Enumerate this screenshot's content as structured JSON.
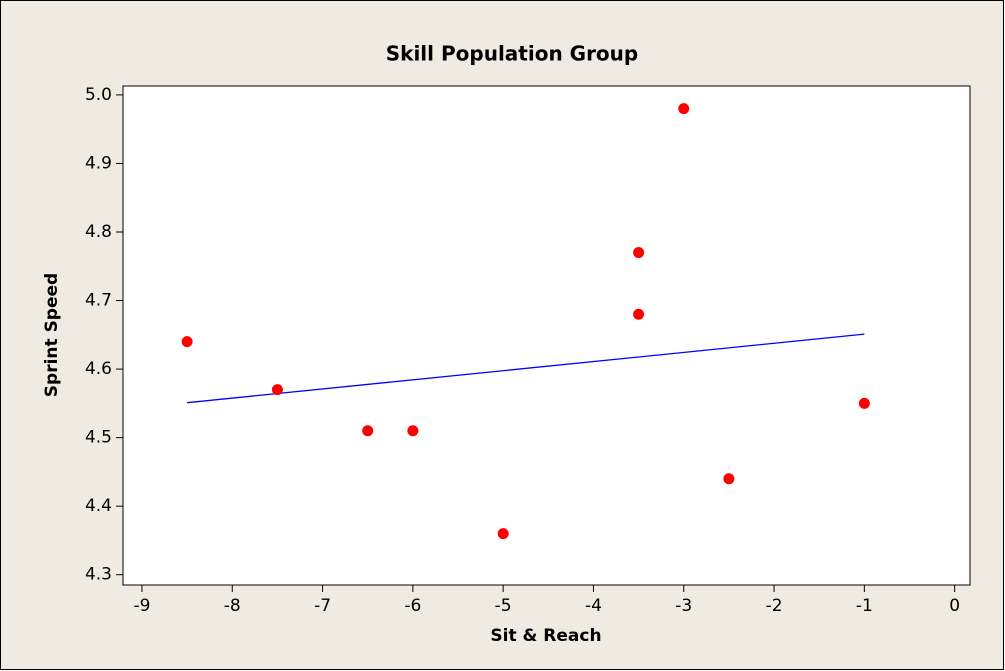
{
  "chart_data": {
    "type": "scatter",
    "title": "Skill Population Group",
    "x_label": "Sit & Reach",
    "y_label": "Sprint Speed",
    "x": [
      -8.5,
      -7.5,
      -6.5,
      -6,
      -5,
      -3.5,
      -3.5,
      -3,
      -2.5,
      -1
    ],
    "y": [
      4.64,
      4.57,
      4.51,
      4.51,
      4.36,
      4.77,
      4.68,
      4.98,
      4.44,
      4.55
    ],
    "color": "#ff0000",
    "fit_line": {
      "x": [
        -8.5,
        -1
      ],
      "y": [
        4.551,
        4.651
      ],
      "color": "#0000ff"
    },
    "xlim": [
      -9.21,
      0.17
    ],
    "xticks": [
      -9,
      -8,
      -7,
      -6,
      -5,
      -4,
      -3,
      -2,
      -1,
      0
    ],
    "ylim": [
      4.285,
      5.013
    ],
    "yticks": [
      {
        "value": 4.3,
        "label": "4.3"
      },
      {
        "value": 4.4,
        "label": "4.4"
      },
      {
        "value": 4.5,
        "label": "4.5"
      },
      {
        "value": 4.6,
        "label": "4.6"
      },
      {
        "value": 4.7,
        "label": "4.7"
      },
      {
        "value": 4.8,
        "label": "4.8"
      },
      {
        "value": 4.9,
        "label": "4.9"
      },
      {
        "value": 5,
        "label": "5.0"
      }
    ]
  }
}
